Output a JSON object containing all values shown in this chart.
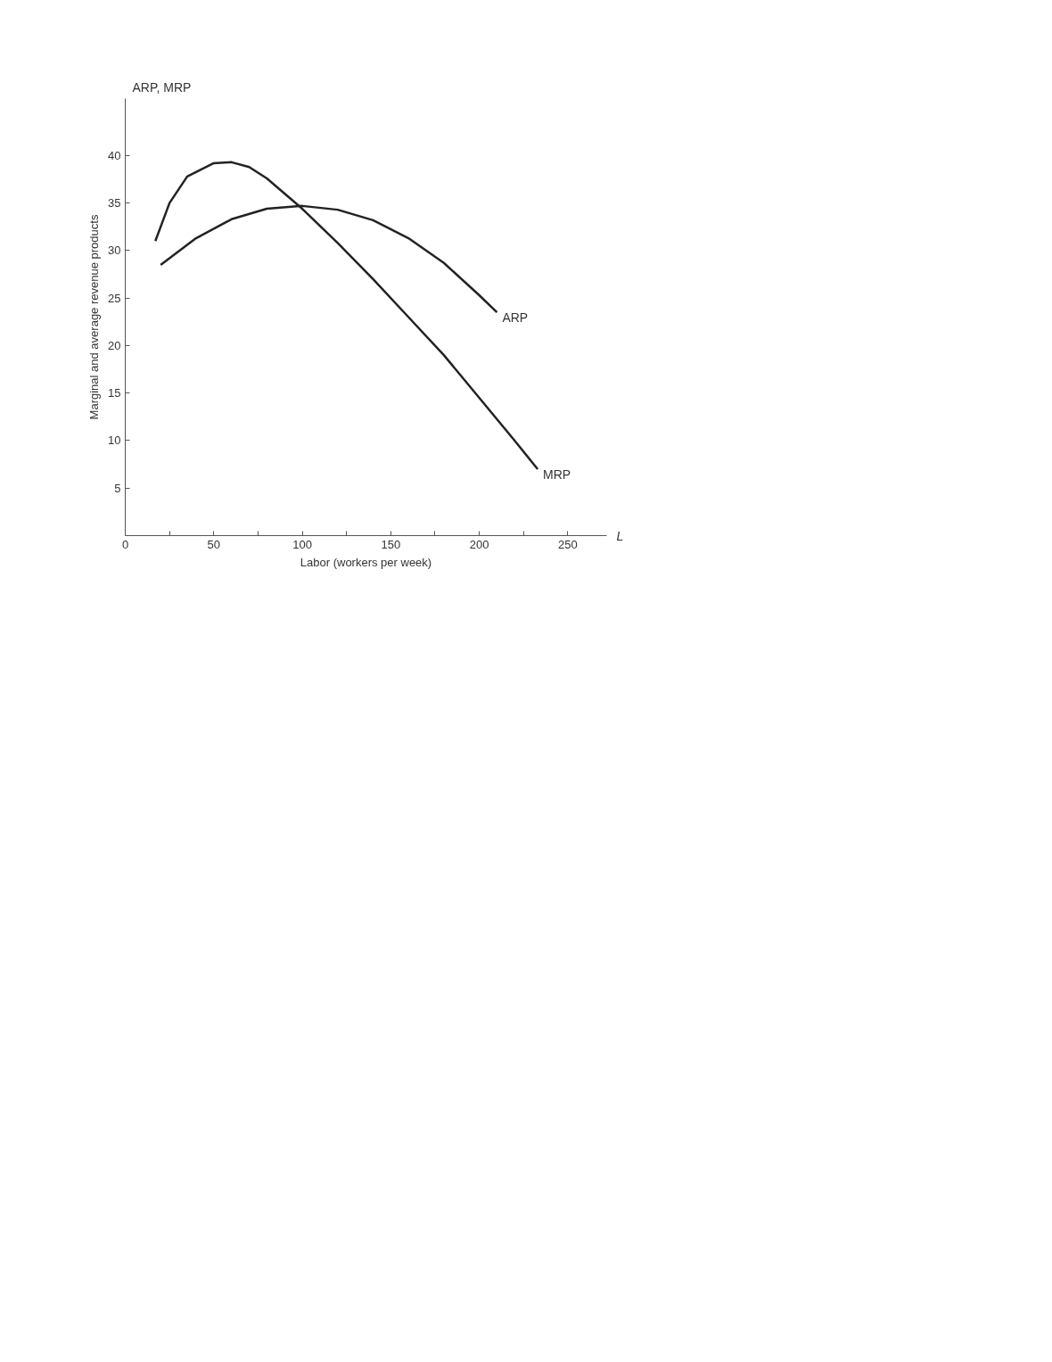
{
  "chart_data": {
    "type": "line",
    "xlabel": "Labor (workers per week)",
    "ylabel": "Marginal and average revenue products",
    "annotations": [
      "ARP, MRP",
      "L"
    ],
    "xlim": [
      0,
      272
    ],
    "ylim": [
      0,
      46
    ],
    "xticks": [
      0,
      {
        "value": 25,
        "label": null
      },
      50,
      {
        "value": 75,
        "label": null
      },
      100,
      {
        "value": 125,
        "label": null
      },
      150,
      {
        "value": 175,
        "label": null
      },
      200,
      {
        "value": 225,
        "label": null
      },
      250
    ],
    "yticks": [
      5,
      10,
      15,
      20,
      25,
      30,
      35,
      40
    ],
    "grid": false,
    "legend": false,
    "marker": "none",
    "line_style": "solid",
    "series": [
      {
        "name": "ARP",
        "color": "#222222",
        "x": [
          20,
          40,
          60,
          80,
          100,
          120,
          140,
          160,
          180,
          200,
          210
        ],
        "values": [
          28.5,
          31.3,
          33.3,
          34.4,
          34.7,
          34.3,
          33.2,
          31.3,
          28.7,
          25.3,
          23.5
        ]
      },
      {
        "name": "MRP",
        "color": "#222222",
        "x": [
          17,
          25,
          35,
          50,
          60,
          70,
          80,
          90,
          100,
          120,
          140,
          160,
          180,
          200,
          220,
          233
        ],
        "values": [
          31,
          35,
          37.8,
          39.2,
          39.3,
          38.8,
          37.6,
          36,
          34.4,
          30.8,
          27,
          23,
          19,
          14.5,
          10,
          7
        ]
      }
    ]
  }
}
